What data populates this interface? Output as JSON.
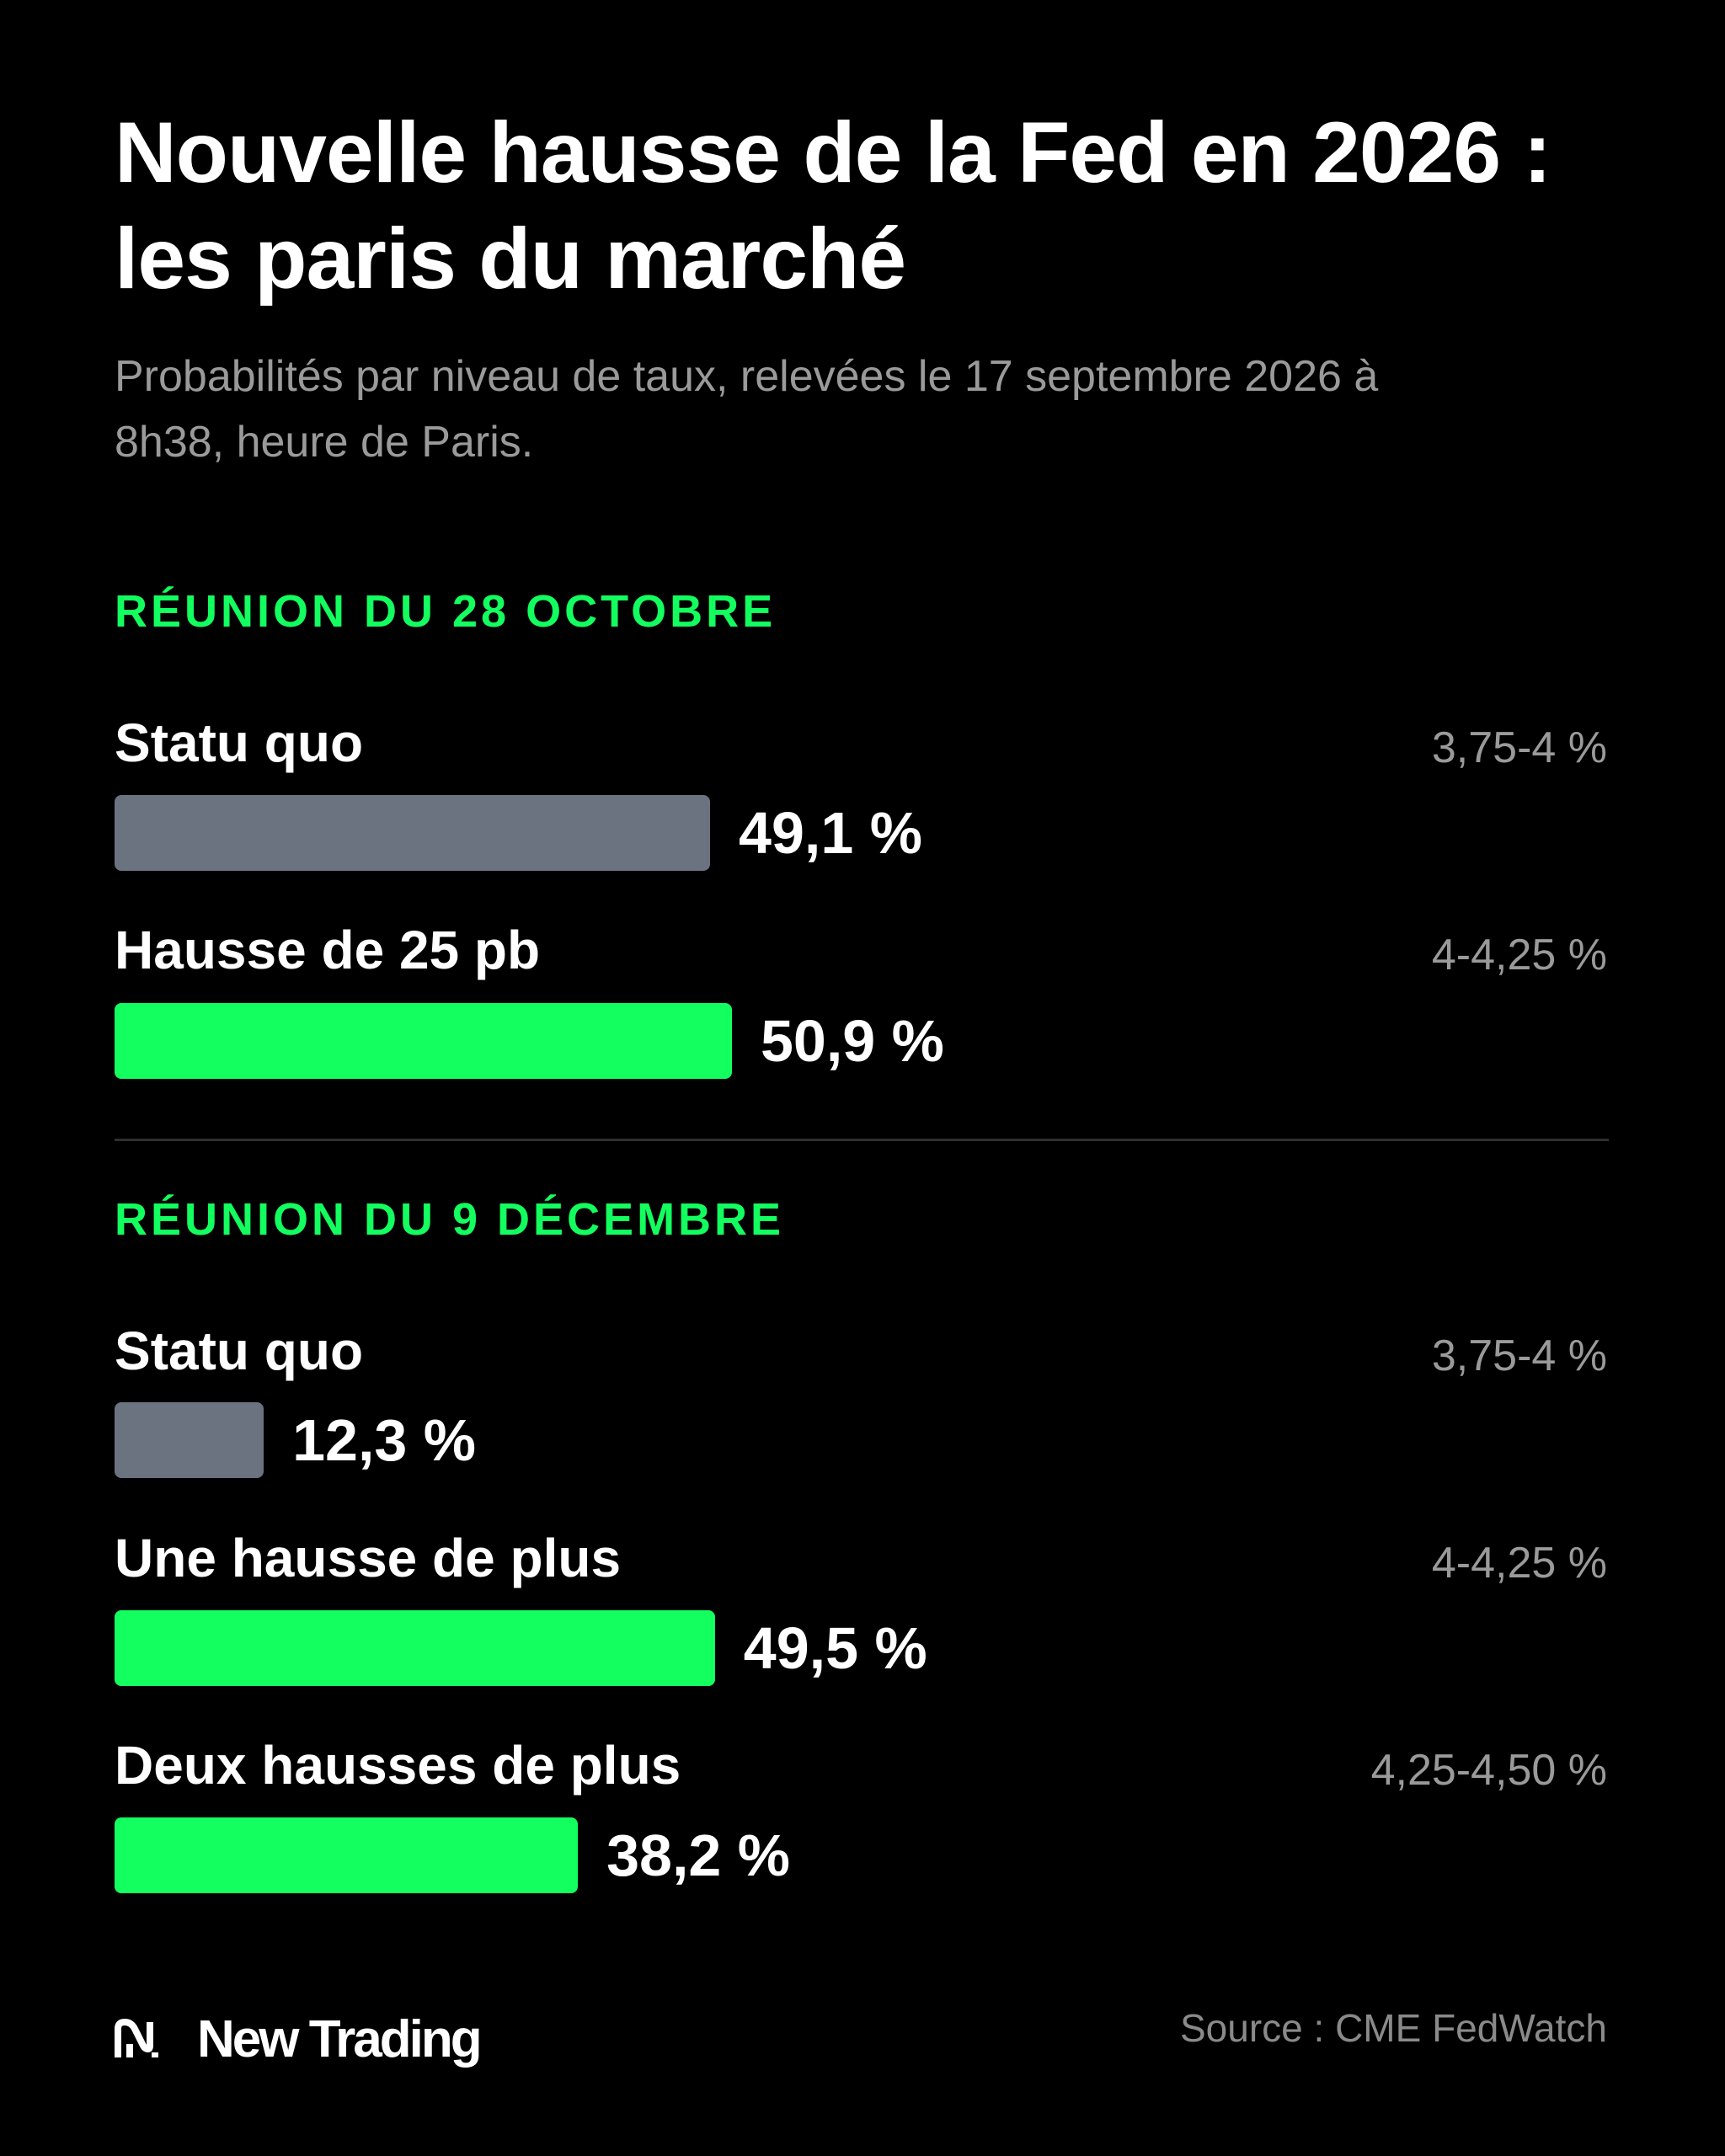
{
  "title_line1": "Nouvelle hausse de la Fed en 2026 :",
  "title_line2": "les paris du marché",
  "subtitle": "Probabilités par niveau de taux, relevées le 17 septembre 2026 à 8h38, heure de Paris.",
  "colors": {
    "accent": "#13ff5f",
    "neutral_bar": "#6b7280",
    "background": "#000000",
    "muted_text": "#9a9a9a"
  },
  "chart_data": [
    {
      "type": "bar",
      "orientation": "horizontal",
      "title": "RÉUNION DU 28 OCTOBRE",
      "categories": [
        "Statu quo",
        "Hausse de 25 pb"
      ],
      "ranges": [
        "3,75-4 %",
        "4-4,25 %"
      ],
      "values": [
        49.1,
        50.9
      ],
      "value_labels": [
        "49,1 %",
        "50,9 %"
      ],
      "colors": [
        "#6b7280",
        "#13ff5f"
      ],
      "unit": "%",
      "xlim": [
        0,
        100
      ],
      "grid": false
    },
    {
      "type": "bar",
      "orientation": "horizontal",
      "title": "RÉUNION DU 9 DÉCEMBRE",
      "categories": [
        "Statu quo",
        "Une hausse de plus",
        "Deux hausses de plus"
      ],
      "ranges": [
        "3,75-4 %",
        "4-4,25 %",
        "4,25-4,50 %"
      ],
      "values": [
        12.3,
        49.5,
        38.2
      ],
      "value_labels": [
        "12,3 %",
        "49,5 %",
        "38,2 %"
      ],
      "colors": [
        "#6b7280",
        "#13ff5f",
        "#13ff5f"
      ],
      "unit": "%",
      "xlim": [
        0,
        100
      ],
      "grid": false
    }
  ],
  "footer": {
    "brand": "New Trading",
    "logo_icon": "new-trading-logo-icon",
    "source": "Source : CME FedWatch"
  }
}
